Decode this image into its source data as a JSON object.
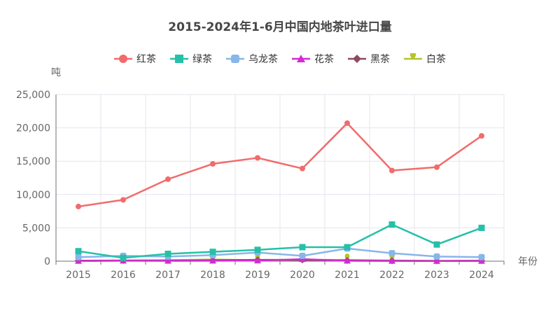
{
  "title": "2015-2024年1-6月中国内地茶叶进口量",
  "chart_data": {
    "type": "line",
    "title": "2015-2024年1-6月中国内地茶叶进口量",
    "xlabel": "年份",
    "ylabel": "吨",
    "categories": [
      "2015",
      "2016",
      "2017",
      "2018",
      "2019",
      "2020",
      "2021",
      "2022",
      "2023",
      "2024"
    ],
    "ylim": [
      0,
      25000
    ],
    "yticks": [
      "0",
      "5,000",
      "10,000",
      "15,000",
      "20,000",
      "25,000"
    ],
    "grid": true,
    "legend_position": "top-center",
    "series": [
      {
        "name": "红茶",
        "color": "#f26b6b",
        "marker": "circle",
        "values": [
          8200,
          9200,
          12300,
          14600,
          15500,
          13900,
          20700,
          13600,
          14100,
          18800
        ]
      },
      {
        "name": "绿茶",
        "color": "#26c0a8",
        "marker": "square",
        "values": [
          1500,
          500,
          1100,
          1400,
          1700,
          2100,
          2100,
          5500,
          2500,
          5000
        ]
      },
      {
        "name": "乌龙茶",
        "color": "#87b7e8",
        "marker": "roundsquare",
        "values": [
          600,
          800,
          700,
          900,
          1300,
          800,
          1900,
          1200,
          700,
          600
        ]
      },
      {
        "name": "花茶",
        "color": "#d22bd2",
        "marker": "triangle",
        "values": [
          40,
          60,
          50,
          60,
          90,
          300,
          60,
          40,
          20,
          40
        ]
      },
      {
        "name": "黑茶",
        "color": "#8b4b5e",
        "marker": "diamond",
        "values": [
          80,
          100,
          100,
          150,
          200,
          200,
          100,
          60,
          40,
          60
        ]
      },
      {
        "name": "白茶",
        "color": "#b5c42a",
        "marker": "pin",
        "values": [
          60,
          80,
          150,
          250,
          150,
          180,
          200,
          100,
          50,
          80
        ]
      }
    ]
  }
}
